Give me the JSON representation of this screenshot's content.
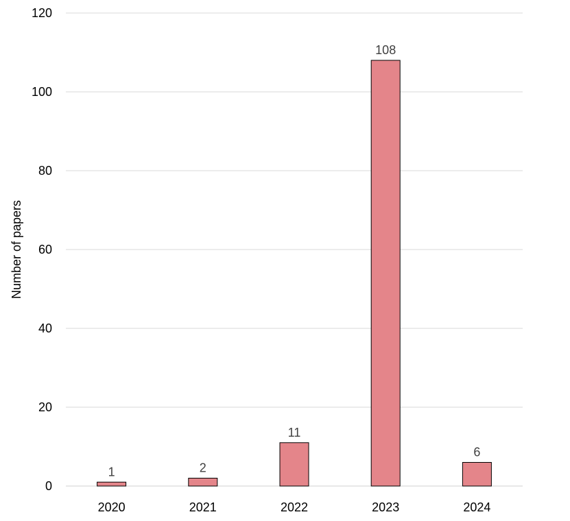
{
  "chart_data": {
    "type": "bar",
    "title": "",
    "xlabel": "",
    "ylabel": "Number of papers",
    "categories": [
      "2020",
      "2021",
      "2022",
      "2023",
      "2024"
    ],
    "values": [
      1,
      2,
      11,
      108,
      6
    ],
    "ylim": [
      0,
      120
    ],
    "yticks": [
      0,
      20,
      40,
      60,
      80,
      100,
      120
    ],
    "grid": true,
    "legend": "none",
    "data_labels": true,
    "colors": {
      "bar_fill": "#e4858a",
      "bar_stroke": "#000000",
      "grid": "#d9d9d9",
      "data_label": "#404040"
    }
  }
}
